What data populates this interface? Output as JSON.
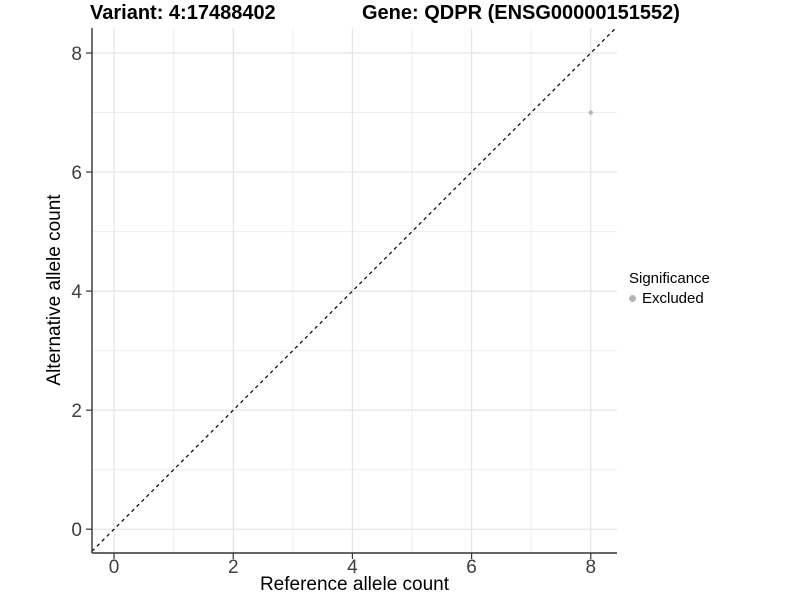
{
  "titles": {
    "variant": "Variant: 4:17488402",
    "gene": "Gene: QDPR (ENSG00000151552)"
  },
  "chart_data": {
    "type": "scatter",
    "title": "Variant: 4:17488402    Gene: QDPR (ENSG00000151552)",
    "xlabel": "Reference allele count",
    "ylabel": "Alternative allele count",
    "xlim": [
      -0.37,
      8.44
    ],
    "ylim": [
      -0.4,
      8.42
    ],
    "x_ticks": [
      0,
      2,
      4,
      6,
      8
    ],
    "y_ticks": [
      0,
      2,
      4,
      6,
      8
    ],
    "x_minor_ticks": [
      1,
      3,
      5,
      7
    ],
    "y_minor_ticks": [
      1,
      3,
      5,
      7
    ],
    "grid": "major and minor, light grey on white",
    "series": [
      {
        "name": "Excluded",
        "color": "#b5b5b5",
        "points": [
          {
            "x": 8,
            "y": 7
          }
        ]
      }
    ],
    "reference_line": {
      "equation": "y = x",
      "style": "dashed",
      "color": "#000000"
    },
    "legend": {
      "position": "right",
      "title": "Significance",
      "entries": [
        {
          "label": "Excluded",
          "color": "#b5b5b5"
        }
      ]
    }
  },
  "colors": {
    "background": "#ffffff",
    "grid_major": "#e4e4e4",
    "grid_minor": "#eeeeee",
    "axis_line": "#333333",
    "tick_label": "#404040",
    "point": "#b5b5b5",
    "diagonal": "#000000"
  }
}
